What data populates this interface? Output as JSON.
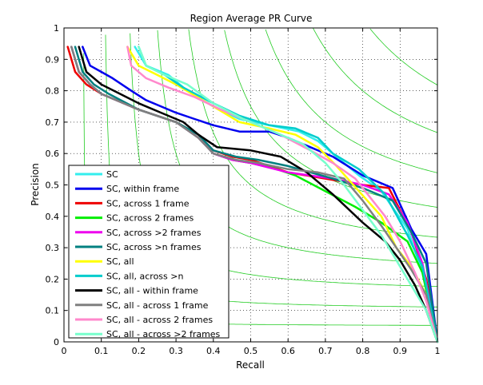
{
  "chart_data": {
    "type": "line",
    "title": "Region Average PR Curve",
    "xlabel": "Recall",
    "ylabel": "Precision",
    "xlim": [
      0,
      1
    ],
    "ylim": [
      0,
      1
    ],
    "xticks": [
      "0",
      "0.1",
      "0.2",
      "0.3",
      "0.4",
      "0.5",
      "0.6",
      "0.7",
      "0.8",
      "0.9",
      "1"
    ],
    "yticks": [
      "0",
      "0.1",
      "0.2",
      "0.3",
      "0.4",
      "0.5",
      "0.6",
      "0.7",
      "0.8",
      "0.9",
      "1"
    ],
    "grid": true,
    "legend_position": "lower-left",
    "f_iso_curves": {
      "color": "#22cc22",
      "f_values": [
        0.1,
        0.2,
        0.3,
        0.4,
        0.5,
        0.6,
        0.7,
        0.8,
        0.9
      ]
    },
    "series": [
      {
        "name": "SC",
        "color": "#33eeee",
        "points": [
          [
            0.19,
            0.94
          ],
          [
            0.22,
            0.88
          ],
          [
            0.28,
            0.85
          ],
          [
            0.33,
            0.8
          ],
          [
            0.4,
            0.75
          ],
          [
            0.47,
            0.71
          ],
          [
            0.55,
            0.69
          ],
          [
            0.63,
            0.67
          ],
          [
            0.68,
            0.64
          ],
          [
            0.72,
            0.6
          ],
          [
            0.79,
            0.53
          ],
          [
            0.85,
            0.48
          ],
          [
            0.92,
            0.36
          ],
          [
            0.96,
            0.22
          ],
          [
            1.0,
            0.0
          ]
        ]
      },
      {
        "name": "SC, within frame",
        "color": "#0000ee",
        "points": [
          [
            0.05,
            0.94
          ],
          [
            0.07,
            0.88
          ],
          [
            0.1,
            0.86
          ],
          [
            0.13,
            0.84
          ],
          [
            0.18,
            0.8
          ],
          [
            0.22,
            0.77
          ],
          [
            0.3,
            0.73
          ],
          [
            0.35,
            0.71
          ],
          [
            0.4,
            0.69
          ],
          [
            0.47,
            0.67
          ],
          [
            0.55,
            0.67
          ],
          [
            0.6,
            0.65
          ],
          [
            0.66,
            0.62
          ],
          [
            0.72,
            0.59
          ],
          [
            0.8,
            0.53
          ],
          [
            0.88,
            0.49
          ],
          [
            0.93,
            0.36
          ],
          [
            0.97,
            0.28
          ],
          [
            1.0,
            0.0
          ]
        ]
      },
      {
        "name": "SC, across 1 frame",
        "color": "#ee0000",
        "points": [
          [
            0.01,
            0.94
          ],
          [
            0.03,
            0.86
          ],
          [
            0.06,
            0.82
          ],
          [
            0.1,
            0.79
          ],
          [
            0.2,
            0.74
          ],
          [
            0.3,
            0.7
          ],
          [
            0.36,
            0.66
          ],
          [
            0.4,
            0.61
          ],
          [
            0.45,
            0.59
          ],
          [
            0.5,
            0.58
          ],
          [
            0.55,
            0.56
          ],
          [
            0.6,
            0.54
          ],
          [
            0.7,
            0.52
          ],
          [
            0.8,
            0.5
          ],
          [
            0.87,
            0.49
          ],
          [
            0.93,
            0.35
          ],
          [
            0.97,
            0.2
          ],
          [
            1.0,
            0.0
          ]
        ]
      },
      {
        "name": "SC, across 2 frames",
        "color": "#00ee00",
        "points": [
          [
            0.02,
            0.94
          ],
          [
            0.04,
            0.86
          ],
          [
            0.07,
            0.82
          ],
          [
            0.1,
            0.79
          ],
          [
            0.2,
            0.74
          ],
          [
            0.3,
            0.7
          ],
          [
            0.36,
            0.65
          ],
          [
            0.4,
            0.6
          ],
          [
            0.45,
            0.58
          ],
          [
            0.5,
            0.57
          ],
          [
            0.57,
            0.55
          ],
          [
            0.62,
            0.53
          ],
          [
            0.7,
            0.48
          ],
          [
            0.78,
            0.43
          ],
          [
            0.85,
            0.38
          ],
          [
            0.92,
            0.32
          ],
          [
            0.96,
            0.22
          ],
          [
            1.0,
            0.0
          ]
        ]
      },
      {
        "name": "SC, across >2 frames",
        "color": "#ee00ee",
        "points": [
          [
            0.02,
            0.94
          ],
          [
            0.04,
            0.86
          ],
          [
            0.07,
            0.82
          ],
          [
            0.1,
            0.79
          ],
          [
            0.2,
            0.74
          ],
          [
            0.3,
            0.7
          ],
          [
            0.36,
            0.65
          ],
          [
            0.4,
            0.6
          ],
          [
            0.45,
            0.58
          ],
          [
            0.5,
            0.57
          ],
          [
            0.6,
            0.54
          ],
          [
            0.66,
            0.53
          ],
          [
            0.72,
            0.52
          ],
          [
            0.8,
            0.5
          ],
          [
            0.87,
            0.47
          ],
          [
            0.92,
            0.38
          ],
          [
            0.96,
            0.25
          ],
          [
            1.0,
            0.0
          ]
        ]
      },
      {
        "name": "SC, across >n frames",
        "color": "#008080",
        "points": [
          [
            0.03,
            0.94
          ],
          [
            0.05,
            0.86
          ],
          [
            0.08,
            0.82
          ],
          [
            0.12,
            0.79
          ],
          [
            0.2,
            0.74
          ],
          [
            0.3,
            0.7
          ],
          [
            0.36,
            0.66
          ],
          [
            0.4,
            0.61
          ],
          [
            0.46,
            0.59
          ],
          [
            0.52,
            0.58
          ],
          [
            0.6,
            0.56
          ],
          [
            0.66,
            0.54
          ],
          [
            0.72,
            0.52
          ],
          [
            0.8,
            0.49
          ],
          [
            0.88,
            0.45
          ],
          [
            0.93,
            0.35
          ],
          [
            0.97,
            0.25
          ],
          [
            1.0,
            0.0
          ]
        ]
      },
      {
        "name": "SC, all",
        "color": "#ffff00",
        "points": [
          [
            0.17,
            0.94
          ],
          [
            0.2,
            0.88
          ],
          [
            0.25,
            0.85
          ],
          [
            0.3,
            0.82
          ],
          [
            0.4,
            0.75
          ],
          [
            0.47,
            0.7
          ],
          [
            0.55,
            0.68
          ],
          [
            0.62,
            0.66
          ],
          [
            0.68,
            0.62
          ],
          [
            0.73,
            0.56
          ],
          [
            0.79,
            0.48
          ],
          [
            0.85,
            0.4
          ],
          [
            0.89,
            0.3
          ],
          [
            0.93,
            0.24
          ],
          [
            0.97,
            0.15
          ],
          [
            1.0,
            0.0
          ]
        ]
      },
      {
        "name": "SC, all, across >n",
        "color": "#00cccc",
        "points": [
          [
            0.2,
            0.94
          ],
          [
            0.22,
            0.88
          ],
          [
            0.27,
            0.85
          ],
          [
            0.32,
            0.81
          ],
          [
            0.4,
            0.76
          ],
          [
            0.47,
            0.72
          ],
          [
            0.55,
            0.69
          ],
          [
            0.62,
            0.68
          ],
          [
            0.68,
            0.65
          ],
          [
            0.72,
            0.6
          ],
          [
            0.79,
            0.55
          ],
          [
            0.86,
            0.47
          ],
          [
            0.92,
            0.34
          ],
          [
            0.96,
            0.24
          ],
          [
            1.0,
            0.0
          ]
        ]
      },
      {
        "name": "SC, all - within frame",
        "color": "#000000",
        "points": [
          [
            0.04,
            0.94
          ],
          [
            0.06,
            0.86
          ],
          [
            0.1,
            0.82
          ],
          [
            0.15,
            0.79
          ],
          [
            0.2,
            0.76
          ],
          [
            0.26,
            0.73
          ],
          [
            0.32,
            0.7
          ],
          [
            0.36,
            0.66
          ],
          [
            0.41,
            0.62
          ],
          [
            0.5,
            0.61
          ],
          [
            0.58,
            0.59
          ],
          [
            0.65,
            0.54
          ],
          [
            0.72,
            0.47
          ],
          [
            0.8,
            0.38
          ],
          [
            0.86,
            0.32
          ],
          [
            0.9,
            0.26
          ],
          [
            0.94,
            0.18
          ],
          [
            0.97,
            0.1
          ],
          [
            1.0,
            0.0
          ]
        ]
      },
      {
        "name": "SC, all - across 1 frame",
        "color": "#808080",
        "points": [
          [
            0.02,
            0.94
          ],
          [
            0.04,
            0.86
          ],
          [
            0.07,
            0.82
          ],
          [
            0.1,
            0.79
          ],
          [
            0.2,
            0.74
          ],
          [
            0.3,
            0.7
          ],
          [
            0.36,
            0.65
          ],
          [
            0.4,
            0.6
          ],
          [
            0.46,
            0.58
          ],
          [
            0.52,
            0.57
          ],
          [
            0.6,
            0.55
          ],
          [
            0.68,
            0.54
          ],
          [
            0.75,
            0.52
          ],
          [
            0.8,
            0.45
          ],
          [
            0.85,
            0.37
          ],
          [
            0.89,
            0.3
          ],
          [
            0.93,
            0.23
          ],
          [
            0.97,
            0.15
          ],
          [
            1.0,
            0.0
          ]
        ]
      },
      {
        "name": "SC, all - across 2 frames",
        "color": "#ff88cc",
        "points": [
          [
            0.17,
            0.94
          ],
          [
            0.18,
            0.88
          ],
          [
            0.22,
            0.84
          ],
          [
            0.28,
            0.81
          ],
          [
            0.35,
            0.78
          ],
          [
            0.42,
            0.74
          ],
          [
            0.5,
            0.7
          ],
          [
            0.58,
            0.66
          ],
          [
            0.66,
            0.61
          ],
          [
            0.72,
            0.57
          ],
          [
            0.78,
            0.52
          ],
          [
            0.82,
            0.46
          ],
          [
            0.86,
            0.4
          ],
          [
            0.9,
            0.32
          ],
          [
            0.94,
            0.22
          ],
          [
            0.97,
            0.13
          ],
          [
            1.0,
            0.0
          ]
        ]
      },
      {
        "name": "SC, all - across >2 frames",
        "color": "#77ffcc",
        "points": [
          [
            0.2,
            0.94
          ],
          [
            0.22,
            0.88
          ],
          [
            0.27,
            0.85
          ],
          [
            0.33,
            0.82
          ],
          [
            0.4,
            0.76
          ],
          [
            0.48,
            0.71
          ],
          [
            0.56,
            0.67
          ],
          [
            0.64,
            0.63
          ],
          [
            0.7,
            0.57
          ],
          [
            0.75,
            0.5
          ],
          [
            0.8,
            0.42
          ],
          [
            0.85,
            0.34
          ],
          [
            0.89,
            0.26
          ],
          [
            0.93,
            0.18
          ],
          [
            0.97,
            0.1
          ],
          [
            1.0,
            0.0
          ]
        ]
      }
    ]
  }
}
